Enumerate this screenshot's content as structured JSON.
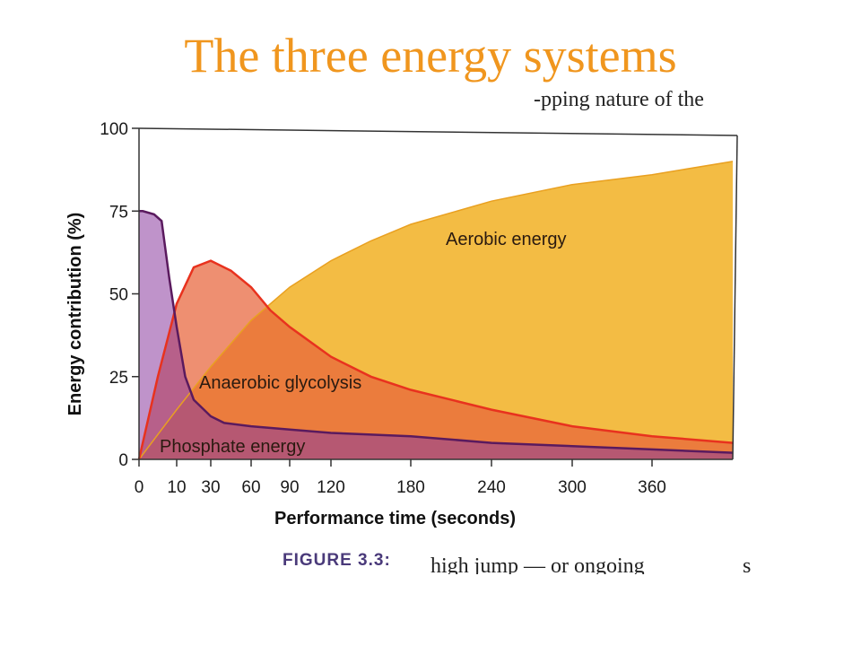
{
  "slide": {
    "title": "The three energy systems"
  },
  "scan_fragments": {
    "top_right": "-pping nature of the",
    "bottom_middle": "high jump — or ongoing",
    "bottom_right": "s"
  },
  "figure_caption": "FIGURE 3.3:",
  "colors": {
    "title": "#f0961e",
    "phosphate": "#8a3a9e",
    "phosphate_line": "#5a1a5e",
    "glycolysis": "#e8643a",
    "glycolysis_line": "#e8321e",
    "aerobic": "#f2b83a",
    "plot_bg": "#ffffff"
  },
  "chart_data": {
    "type": "area",
    "title": "",
    "xlabel": "Performance time (seconds)",
    "ylabel": "Energy contribution (%)",
    "xlim": [
      0,
      420
    ],
    "ylim": [
      0,
      100
    ],
    "x_ticks": [
      0,
      10,
      30,
      60,
      90,
      120,
      180,
      240,
      300,
      360
    ],
    "y_ticks": [
      0,
      25,
      50,
      75,
      100
    ],
    "grid": false,
    "series": [
      {
        "name": "Phosphate energy",
        "x": [
          0,
          1,
          4,
          6,
          8,
          10,
          15,
          20,
          30,
          40,
          60,
          90,
          120,
          180,
          240,
          300,
          360,
          420
        ],
        "y": [
          75,
          75,
          74,
          72,
          55,
          40,
          25,
          18,
          13,
          11,
          10,
          9,
          8,
          7,
          5,
          4,
          3,
          2
        ]
      },
      {
        "name": "Anaerobic glycolysis",
        "x": [
          0,
          5,
          10,
          20,
          30,
          45,
          60,
          75,
          90,
          120,
          150,
          180,
          240,
          300,
          360,
          420
        ],
        "y": [
          0,
          25,
          47,
          58,
          60,
          57,
          52,
          45,
          40,
          31,
          25,
          21,
          15,
          10,
          7,
          5
        ]
      },
      {
        "name": "Aerobic energy",
        "x": [
          0,
          10,
          30,
          60,
          90,
          120,
          150,
          180,
          240,
          300,
          360,
          420
        ],
        "y": [
          0,
          15,
          28,
          42,
          52,
          60,
          66,
          71,
          78,
          83,
          86,
          90
        ]
      }
    ],
    "annotations": [
      "Aerobic energy",
      "Anaerobic glycolysis",
      "Phosphate energy"
    ]
  }
}
